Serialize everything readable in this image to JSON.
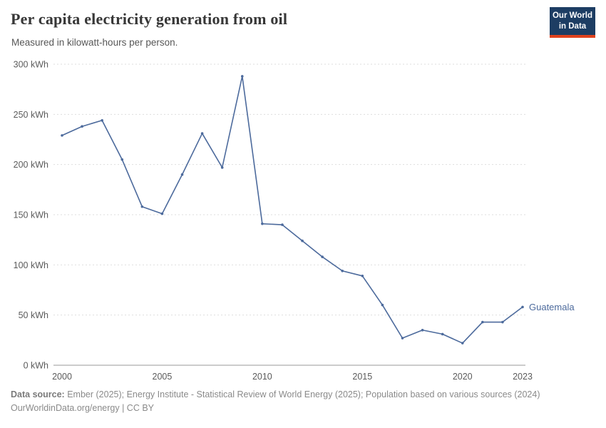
{
  "header": {
    "title": "Per capita electricity generation from oil",
    "subtitle": "Measured in kilowatt-hours per person."
  },
  "logo": {
    "line1": "Our World",
    "line2": "in Data",
    "bg": "#1d3d63",
    "accent": "#e0421d"
  },
  "chart_data": {
    "type": "line",
    "title": "Per capita electricity generation from oil",
    "subtitle": "Measured in kilowatt-hours per person.",
    "xlabel": "",
    "ylabel": "kWh",
    "xlim": [
      2000,
      2023
    ],
    "ylim": [
      0,
      300
    ],
    "grid": "horizontal-dashed",
    "legend_position": "end-of-line",
    "xticks": [
      2000,
      2005,
      2010,
      2015,
      2020,
      2023
    ],
    "yticks": [
      {
        "value": 0,
        "label": "0 kWh"
      },
      {
        "value": 50,
        "label": "50 kWh"
      },
      {
        "value": 100,
        "label": "100 kWh"
      },
      {
        "value": 150,
        "label": "150 kWh"
      },
      {
        "value": 200,
        "label": "200 kWh"
      },
      {
        "value": 250,
        "label": "250 kWh"
      },
      {
        "value": 300,
        "label": "300 kWh"
      }
    ],
    "series": [
      {
        "name": "Guatemala",
        "color": "#4c6a9c",
        "x": [
          2000,
          2001,
          2002,
          2003,
          2004,
          2005,
          2006,
          2007,
          2008,
          2009,
          2010,
          2011,
          2012,
          2013,
          2014,
          2015,
          2016,
          2017,
          2018,
          2019,
          2020,
          2021,
          2022,
          2023
        ],
        "values": [
          229,
          238,
          244,
          205,
          158,
          151,
          190,
          231,
          197,
          288,
          141,
          140,
          124,
          108,
          94,
          89,
          60,
          27,
          35,
          31,
          22,
          43,
          43,
          58
        ]
      }
    ]
  },
  "footer": {
    "datasource_label": "Data source:",
    "datasource_text": " Ember (2025); Energy Institute - Statistical Review of World Energy (2025); Population based on various sources (2024)",
    "license": "OurWorldinData.org/energy | CC BY"
  }
}
